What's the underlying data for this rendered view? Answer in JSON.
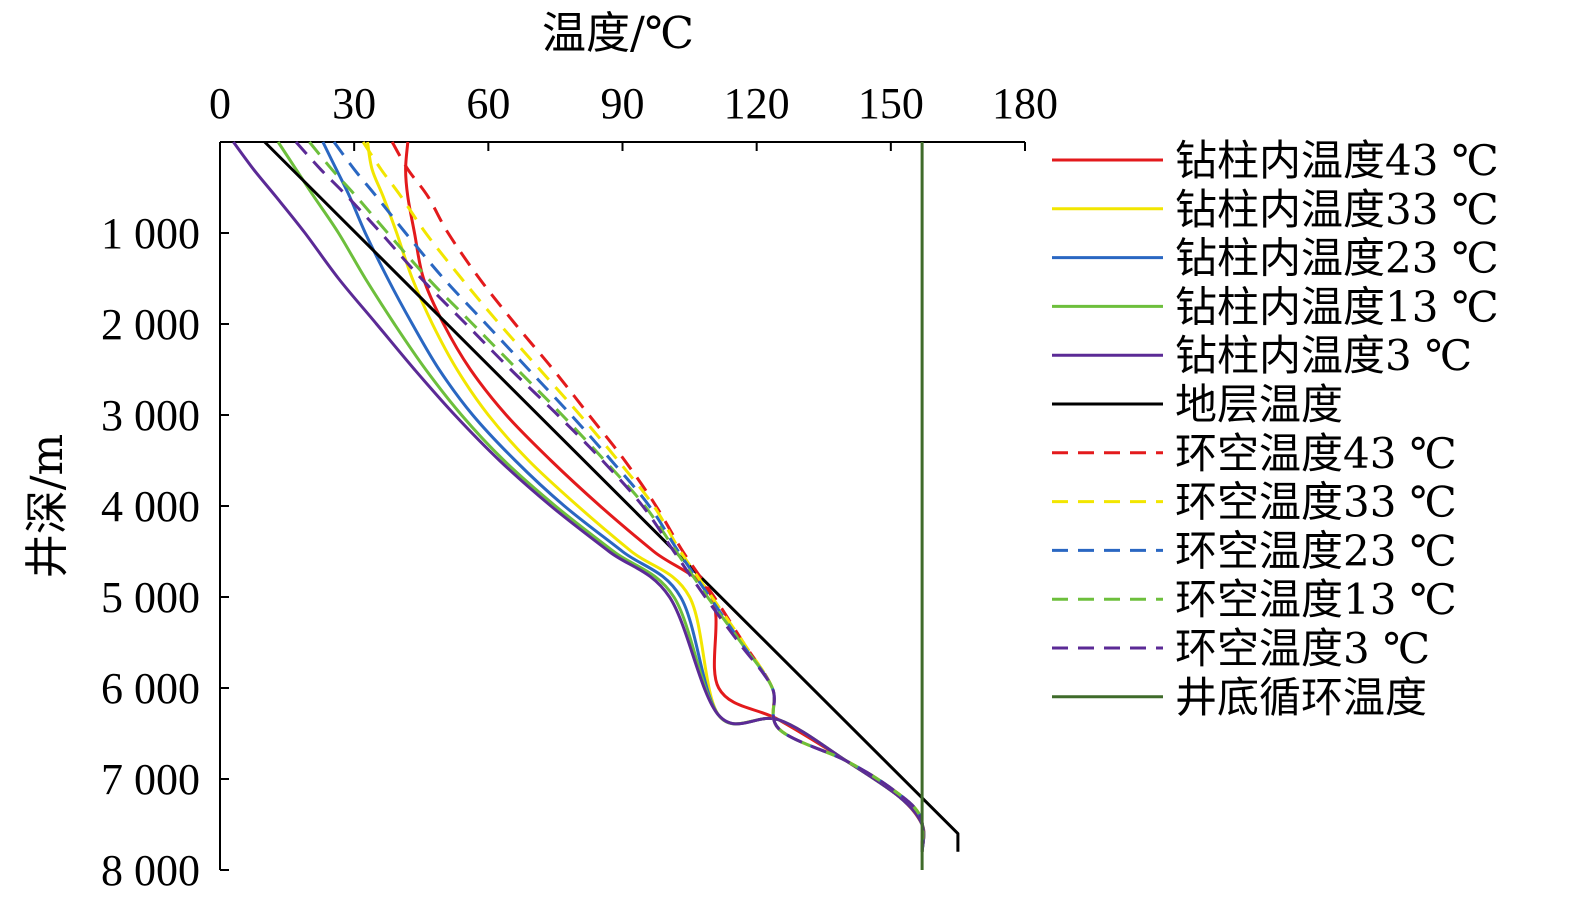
{
  "chart_data": {
    "type": "line",
    "xlabel": "温度/℃",
    "ylabel": "井深/m",
    "xlim": [
      0,
      180
    ],
    "ylim": [
      0,
      8000
    ],
    "y_inverted": true,
    "x_axis_position": "top",
    "legend_position": "right",
    "grid": false,
    "x_ticks": [
      {
        "value": 0,
        "label": "0"
      },
      {
        "value": 30,
        "label": "30"
      },
      {
        "value": 60,
        "label": "60"
      },
      {
        "value": 90,
        "label": "90"
      },
      {
        "value": 120,
        "label": "120"
      },
      {
        "value": 150,
        "label": "150"
      },
      {
        "value": 180,
        "label": "180"
      }
    ],
    "y_ticks": [
      {
        "value": 1000,
        "label": "1 000"
      },
      {
        "value": 2000,
        "label": "2 000"
      },
      {
        "value": 3000,
        "label": "3 000"
      },
      {
        "value": 4000,
        "label": "4 000"
      },
      {
        "value": 5000,
        "label": "5 000"
      },
      {
        "value": 6000,
        "label": "6 000"
      },
      {
        "value": 7000,
        "label": "7 000"
      },
      {
        "value": 8000,
        "label": "8 000"
      }
    ],
    "series": [
      {
        "name": "钻柱内温度43 ℃",
        "color": "#e31a1c",
        "dash": false,
        "x": [
          42,
          41.5,
          42,
          43.5,
          45.5,
          50,
          56,
          64,
          74,
          85,
          97,
          110,
          111.5,
          125,
          140,
          152,
          157,
          157,
          157
        ],
        "y": [
          0,
          300,
          600,
          1000,
          1500,
          2000,
          2500,
          3000,
          3500,
          4000,
          4500,
          5000,
          6000,
          6350,
          6800,
          7200,
          7500,
          7700,
          7800
        ]
      },
      {
        "name": "钻柱内温度33 ℃",
        "color": "#f2e600",
        "dash": false,
        "x": [
          33,
          34,
          36.5,
          39.5,
          43,
          47.5,
          53,
          60,
          69,
          80,
          92,
          105,
          111.5,
          125,
          140,
          152,
          157,
          157
        ],
        "y": [
          0,
          300,
          600,
          1000,
          1500,
          2000,
          2500,
          3000,
          3500,
          4000,
          4500,
          5000,
          6300,
          6350,
          6800,
          7200,
          7500,
          7800
        ]
      },
      {
        "name": "钻柱内温度23 ℃",
        "color": "#2a67c2",
        "dash": false,
        "x": [
          23,
          26,
          29,
          32.5,
          37.5,
          43,
          49,
          56.5,
          66,
          77,
          90,
          103,
          111.5,
          125,
          140,
          152,
          157,
          157
        ],
        "y": [
          0,
          300,
          600,
          1000,
          1500,
          2000,
          2500,
          3000,
          3500,
          4000,
          4500,
          5000,
          6300,
          6350,
          6800,
          7200,
          7500,
          7800
        ]
      },
      {
        "name": "钻柱内温度13 ℃",
        "color": "#6dbf3c",
        "dash": false,
        "x": [
          13,
          17,
          21,
          26.5,
          32.5,
          39,
          46,
          54,
          63.5,
          75,
          88,
          101.5,
          111.5,
          125,
          140,
          152,
          157,
          157
        ],
        "y": [
          0,
          300,
          600,
          1000,
          1500,
          2000,
          2500,
          3000,
          3500,
          4000,
          4500,
          5000,
          6300,
          6350,
          6800,
          7200,
          7500,
          7800
        ]
      },
      {
        "name": "钻柱内温度3 ℃",
        "color": "#5b2a96",
        "dash": false,
        "x": [
          3,
          7.5,
          12.5,
          19,
          26.5,
          35,
          43.5,
          52.5,
          62.5,
          74,
          87,
          100.5,
          111.5,
          125,
          140,
          152,
          157,
          157
        ],
        "y": [
          0,
          300,
          600,
          1000,
          1500,
          2000,
          2500,
          3000,
          3500,
          4000,
          4500,
          5000,
          6300,
          6350,
          6800,
          7200,
          7500,
          7800
        ]
      },
      {
        "name": "地层温度",
        "color": "#000000",
        "dash": false,
        "x": [
          10,
          165,
          165
        ],
        "y": [
          0,
          7600,
          7800
        ]
      },
      {
        "name": "环空温度43 ℃",
        "color": "#e31a1c",
        "dash": true,
        "x": [
          38.5,
          42,
          46.5,
          51,
          58,
          66,
          74.5,
          82.5,
          90.5,
          97.5,
          103.5,
          110.5,
          117,
          123.5,
          125,
          140,
          150,
          156.5,
          157
        ],
        "y": [
          0,
          300,
          600,
          1000,
          1500,
          2000,
          2500,
          3000,
          3500,
          4000,
          4500,
          5000,
          5500,
          6000,
          6450,
          6800,
          7100,
          7400,
          7800
        ]
      },
      {
        "name": "环空温度33 ℃",
        "color": "#f2e600",
        "dash": true,
        "x": [
          32,
          36,
          40.5,
          46,
          54,
          62.5,
          71.5,
          80.5,
          89,
          97,
          103,
          110,
          117,
          123.5,
          125,
          140,
          150,
          156.5,
          157
        ],
        "y": [
          0,
          300,
          600,
          1000,
          1500,
          2000,
          2500,
          3000,
          3500,
          4000,
          4500,
          5000,
          5500,
          6000,
          6450,
          6800,
          7100,
          7400,
          7800
        ]
      },
      {
        "name": "环空温度23 ℃",
        "color": "#2a67c2",
        "dash": true,
        "x": [
          25.5,
          30,
          35,
          41.5,
          50,
          59.5,
          69,
          78.5,
          87.5,
          96,
          102.5,
          109.5,
          116.5,
          123.5,
          125,
          140,
          150,
          156.5,
          157
        ],
        "y": [
          0,
          300,
          600,
          1000,
          1500,
          2000,
          2500,
          3000,
          3500,
          4000,
          4500,
          5000,
          5500,
          6000,
          6450,
          6800,
          7100,
          7400,
          7800
        ]
      },
      {
        "name": "环空温度13 ℃",
        "color": "#6dbf3c",
        "dash": true,
        "x": [
          20,
          25,
          30.5,
          37.5,
          46.5,
          56.5,
          66.5,
          76.5,
          86,
          95,
          102,
          109,
          116.5,
          123.5,
          125,
          140,
          150,
          156.5,
          157
        ],
        "y": [
          0,
          300,
          600,
          1000,
          1500,
          2000,
          2500,
          3000,
          3500,
          4000,
          4500,
          5000,
          5500,
          6000,
          6450,
          6800,
          7100,
          7400,
          7800
        ]
      },
      {
        "name": "环空温度3 ℃",
        "color": "#5b2a96",
        "dash": true,
        "x": [
          17,
          22.5,
          28.5,
          36,
          45,
          55,
          65,
          75.5,
          85.5,
          94.5,
          101.5,
          108.5,
          116,
          123.5,
          125,
          140,
          150,
          156.5,
          157
        ],
        "y": [
          0,
          300,
          600,
          1000,
          1500,
          2000,
          2500,
          3000,
          3500,
          4000,
          4500,
          5000,
          5500,
          6000,
          6450,
          6800,
          7100,
          7400,
          7800
        ]
      },
      {
        "name": "井底循环温度",
        "color": "#3f6b2a",
        "dash": false,
        "x": [
          157,
          157
        ],
        "y": [
          0,
          8000
        ]
      }
    ]
  }
}
